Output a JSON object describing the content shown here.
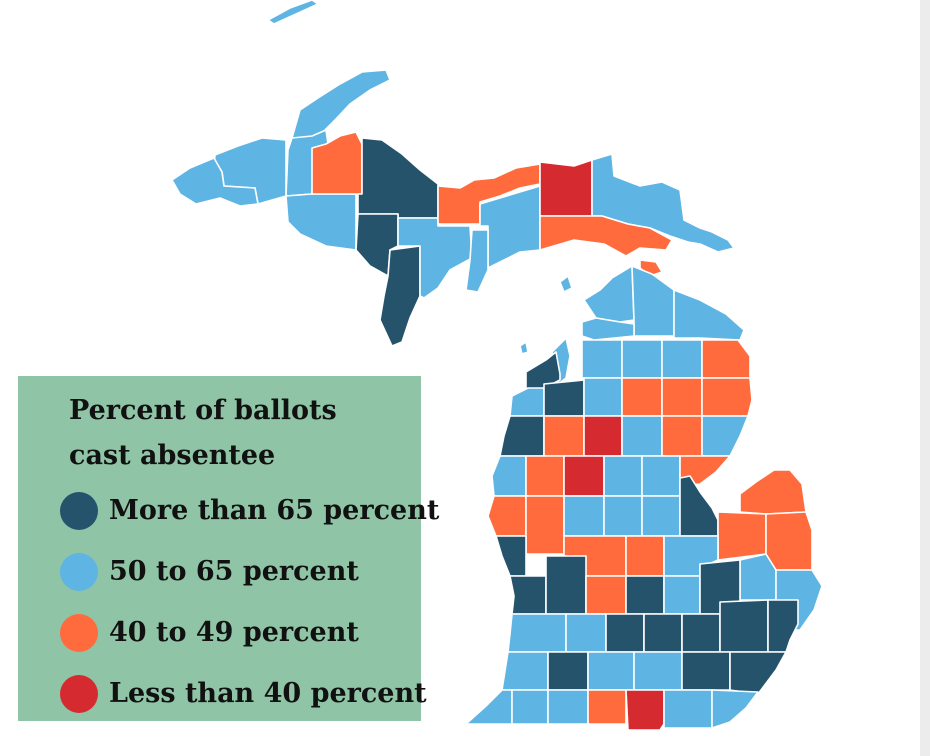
{
  "legend": {
    "title_line1": "Percent of ballots",
    "title_line2": "cast absentee",
    "items": [
      {
        "label": "More than 65 percent",
        "color": "#25536b"
      },
      {
        "label": "50 to 65 percent",
        "color": "#5eb4e3"
      },
      {
        "label": "40 to 49 percent",
        "color": "#ff6b3d"
      },
      {
        "label": "Less than 40 percent",
        "color": "#d42a30"
      }
    ]
  },
  "colors": {
    "dark_blue": "#25536b",
    "light_blue": "#5eb4e3",
    "orange": "#ff6b3d",
    "red": "#d42a30",
    "legend_background": "#8fc4a6"
  }
}
